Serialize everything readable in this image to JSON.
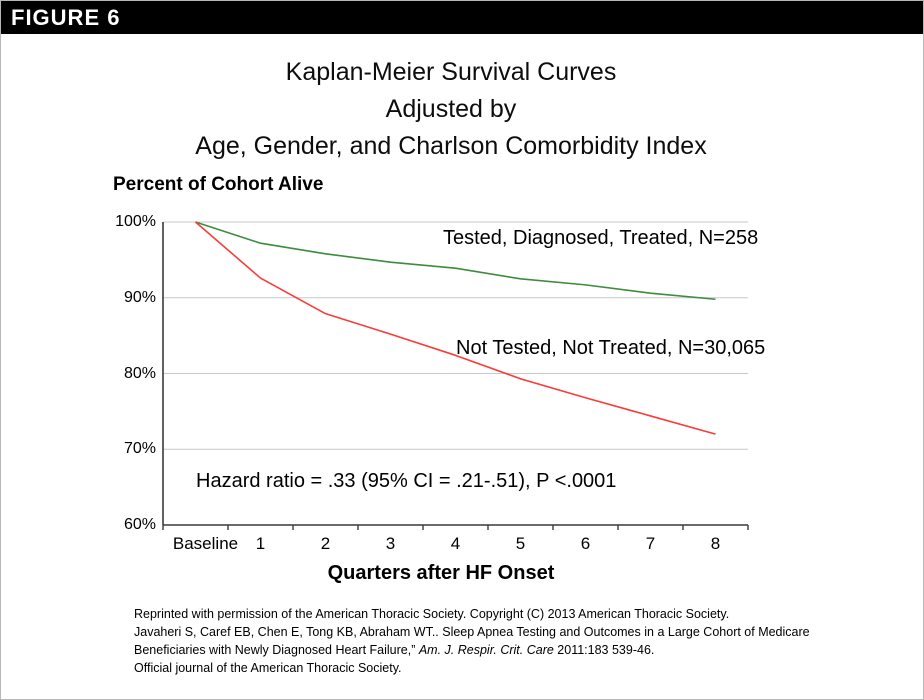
{
  "banner": {
    "label": "FIGURE 6"
  },
  "title": {
    "lines": [
      "Kaplan-Meier Survival Curves",
      "Adjusted by",
      "Age, Gender, and Charlson Comorbidity Index"
    ]
  },
  "chart_data": {
    "type": "line",
    "title": "Kaplan-Meier Survival Curves Adjusted by Age, Gender, and Charlson Comorbidity Index",
    "ylabel": "Percent of Cohort Alive",
    "xlabel": "Quarters after HF Onset",
    "categories": [
      "Baseline",
      "1",
      "2",
      "3",
      "4",
      "5",
      "6",
      "7",
      "8"
    ],
    "ylim": [
      60,
      100
    ],
    "y_tick_labels": [
      "100%",
      "90%",
      "80%",
      "70%",
      "60%"
    ],
    "grid": true,
    "legend_position": "inline-annotations",
    "series": [
      {
        "name": "Tested, Diagnosed, Treated, N=258",
        "color": "#3c8c3c",
        "values": [
          100,
          97.2,
          95.8,
          94.7,
          93.9,
          92.5,
          91.7,
          90.6,
          89.8
        ]
      },
      {
        "name": "Not Tested, Not Treated, N=30,065",
        "color": "#f93b3b",
        "values": [
          100,
          92.6,
          87.9,
          85.2,
          82.4,
          79.3,
          76.8,
          74.4,
          72.0
        ]
      }
    ],
    "annotation": "Hazard ratio = .33 (95% CI = .21-.51), P <.0001",
    "axis_color": "#3a3a3a",
    "gridline_color": "#c8c8c8"
  },
  "footer": {
    "line1": "Reprinted with permission of the American Thoracic Society. Copyright (C) 2013 American Thoracic Society.",
    "line2": "Javaheri S, Caref EB, Chen E, Tong KB, Abraham WT.. Sleep Apnea Testing and Outcomes in a Large Cohort of Medicare",
    "line3_prefix": "Beneficiaries with Newly Diagnosed Heart Failure,” ",
    "line3_italic": "Am. J. Respir. Crit. Care",
    "line3_suffix": " 2011:183 539-46.",
    "line4": "Official journal of the American Thoracic Society."
  }
}
